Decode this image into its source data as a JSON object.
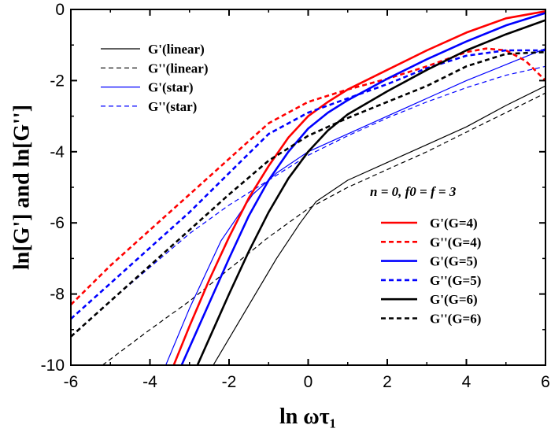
{
  "chart_data": {
    "type": "line",
    "xlabel": "ln ωτ₁",
    "ylabel": "ln[G'] and ln[G'']",
    "xlim": [
      -6,
      6
    ],
    "ylim": [
      -10,
      0
    ],
    "xticks": [
      "-6",
      "-4",
      "-2",
      "0",
      "2",
      "4",
      "6"
    ],
    "yticks": [
      "-10",
      "-8",
      "-6",
      "-4",
      "-2",
      "0"
    ],
    "annotation": "n = 0,  f0 = f = 3",
    "legends": [
      {
        "placement": "top-left",
        "entries": [
          "G'(linear)",
          "G''(linear)",
          "G'(star)",
          "G''(star)"
        ]
      },
      {
        "placement": "right",
        "entries": [
          "G'(G=4)",
          "G''(G=4)",
          "G'(G=5)",
          "G''(G=5)",
          "G'(G=6)",
          "G''(G=6)"
        ]
      }
    ],
    "series": [
      {
        "name": "G'(linear)",
        "color": "#000000",
        "dash": "solid",
        "width": "thin",
        "x": [
          -2.4,
          -1.6,
          -0.8,
          -0.2,
          0.2,
          1.0,
          2.0,
          3.0,
          4.0,
          5.0,
          6.0
        ],
        "y": [
          -10,
          -8.5,
          -7.0,
          -6.0,
          -5.4,
          -4.8,
          -4.3,
          -3.8,
          -3.3,
          -2.7,
          -2.15
        ]
      },
      {
        "name": "G''(linear)",
        "color": "#000000",
        "dash": "dashed",
        "width": "thin",
        "x": [
          -5.2,
          -4.0,
          -3.0,
          -2.0,
          -1.0,
          0.0,
          1.0,
          2.0,
          3.0,
          4.0,
          5.0,
          6.0
        ],
        "y": [
          -10,
          -9.0,
          -8.2,
          -7.3,
          -6.4,
          -5.6,
          -5.0,
          -4.5,
          -4.0,
          -3.45,
          -2.9,
          -2.35
        ]
      },
      {
        "name": "G'(star)",
        "color": "#0000ff",
        "dash": "solid",
        "width": "thin",
        "x": [
          -3.6,
          -3.0,
          -2.2,
          -1.4,
          -0.8,
          0.0,
          1.0,
          2.0,
          3.0,
          4.0,
          5.0,
          6.0
        ],
        "y": [
          -10,
          -8.4,
          -6.5,
          -5.2,
          -4.6,
          -4.0,
          -3.5,
          -3.0,
          -2.5,
          -2.0,
          -1.55,
          -1.1
        ]
      },
      {
        "name": "G''(star)",
        "color": "#0000ff",
        "dash": "dashed",
        "width": "thin",
        "x": [
          -6.0,
          -5.0,
          -4.0,
          -3.0,
          -2.0,
          -1.0,
          0.0,
          1.0,
          2.0,
          3.0,
          4.0,
          5.0,
          6.0
        ],
        "y": [
          -9.2,
          -8.2,
          -7.25,
          -6.3,
          -5.5,
          -4.8,
          -4.1,
          -3.55,
          -3.05,
          -2.6,
          -2.2,
          -1.85,
          -1.6
        ]
      },
      {
        "name": "G'(G=4)",
        "color": "#ff0000",
        "dash": "solid",
        "width": "thick",
        "x": [
          -3.4,
          -3.0,
          -2.5,
          -2.0,
          -1.5,
          -1.0,
          -0.5,
          0.0,
          0.5,
          1.0,
          2.0,
          3.0,
          4.0,
          5.0,
          6.0
        ],
        "y": [
          -10,
          -8.9,
          -7.6,
          -6.4,
          -5.3,
          -4.4,
          -3.6,
          -3.0,
          -2.6,
          -2.25,
          -1.7,
          -1.15,
          -0.65,
          -0.25,
          -0.05
        ]
      },
      {
        "name": "G''(G=4)",
        "color": "#ff0000",
        "dash": "dashed",
        "width": "thick",
        "x": [
          -6.0,
          -5.0,
          -4.0,
          -3.0,
          -2.0,
          -1.0,
          0.0,
          1.0,
          2.0,
          3.0,
          4.0,
          4.5,
          5.0,
          5.5,
          6.0
        ],
        "y": [
          -8.3,
          -7.2,
          -6.2,
          -5.2,
          -4.2,
          -3.2,
          -2.6,
          -2.25,
          -1.95,
          -1.6,
          -1.2,
          -1.1,
          -1.15,
          -1.45,
          -2.0
        ]
      },
      {
        "name": "G'(G=5)",
        "color": "#0000ff",
        "dash": "solid",
        "width": "thick",
        "x": [
          -3.2,
          -2.8,
          -2.4,
          -2.0,
          -1.5,
          -1.0,
          -0.5,
          0.0,
          0.5,
          1.0,
          2.0,
          3.0,
          4.0,
          5.0,
          6.0
        ],
        "y": [
          -10,
          -9.0,
          -8.0,
          -7.0,
          -5.8,
          -4.8,
          -4.0,
          -3.35,
          -2.9,
          -2.55,
          -1.95,
          -1.4,
          -0.9,
          -0.45,
          -0.1
        ]
      },
      {
        "name": "G''(G=5)",
        "color": "#0000ff",
        "dash": "dashed",
        "width": "thick",
        "x": [
          -6.0,
          -5.0,
          -4.0,
          -3.0,
          -2.0,
          -1.0,
          0.0,
          1.0,
          2.0,
          3.0,
          4.0,
          5.0,
          6.0
        ],
        "y": [
          -8.7,
          -7.7,
          -6.7,
          -5.7,
          -4.6,
          -3.5,
          -2.9,
          -2.5,
          -2.1,
          -1.65,
          -1.3,
          -1.15,
          -1.15
        ]
      },
      {
        "name": "G'(G=6)",
        "color": "#000000",
        "dash": "solid",
        "width": "thick",
        "x": [
          -2.8,
          -2.4,
          -2.0,
          -1.5,
          -1.0,
          -0.5,
          0.0,
          0.5,
          1.0,
          2.0,
          3.0,
          4.0,
          5.0,
          6.0
        ],
        "y": [
          -10,
          -9.0,
          -8.0,
          -6.8,
          -5.7,
          -4.75,
          -4.0,
          -3.4,
          -2.95,
          -2.3,
          -1.7,
          -1.15,
          -0.7,
          -0.3
        ]
      },
      {
        "name": "G''(G=6)",
        "color": "#000000",
        "dash": "dashed",
        "width": "thick",
        "x": [
          -6.0,
          -5.0,
          -4.0,
          -3.0,
          -2.0,
          -1.0,
          0.0,
          1.0,
          2.0,
          3.0,
          4.0,
          5.0,
          6.0
        ],
        "y": [
          -9.2,
          -8.2,
          -7.2,
          -6.2,
          -5.2,
          -4.25,
          -3.55,
          -3.05,
          -2.6,
          -2.15,
          -1.6,
          -1.25,
          -1.2
        ]
      }
    ]
  }
}
